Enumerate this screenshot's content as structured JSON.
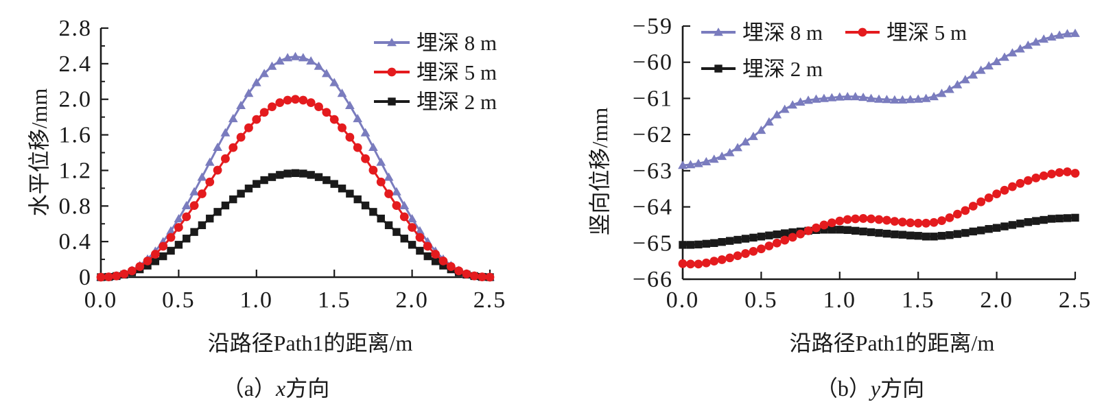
{
  "figure": {
    "background": "#ffffff",
    "text_color": "#1a1a1a"
  },
  "chart_data": [
    {
      "type": "line",
      "panel": "a",
      "caption": {
        "prefix": "（a）",
        "variable": "x",
        "suffix": "方向"
      },
      "xlabel": "沿路径Path1的距离/m",
      "ylabel": "水平位移/mm",
      "xlim": [
        0,
        2.5
      ],
      "ylim": [
        0,
        2.8
      ],
      "x_ticks": {
        "values": [
          0,
          0.5,
          1.0,
          1.5,
          2.0,
          2.5
        ],
        "labels": [
          "0.0",
          "0.5",
          "1.0",
          "1.5",
          "2.0",
          "2.5"
        ]
      },
      "y_ticks": {
        "values": [
          0,
          0.4,
          0.8,
          1.2,
          1.6,
          2.0,
          2.4,
          2.8
        ],
        "labels": [
          "0",
          "0.4",
          "0.8",
          "1.2",
          "1.6",
          "2.0",
          "2.4",
          "2.8"
        ]
      },
      "y_minor_ticks": [
        0.2,
        0.6,
        1.0,
        1.4,
        1.8,
        2.2,
        2.6
      ],
      "legend_position": "top-right-vertical",
      "grid": false,
      "x": [
        0,
        0.05,
        0.1,
        0.15,
        0.2,
        0.25,
        0.3,
        0.35,
        0.4,
        0.45,
        0.5,
        0.55,
        0.6,
        0.65,
        0.7,
        0.75,
        0.8,
        0.85,
        0.9,
        0.95,
        1,
        1.05,
        1.1,
        1.15,
        1.2,
        1.25,
        1.3,
        1.35,
        1.4,
        1.45,
        1.5,
        1.55,
        1.6,
        1.65,
        1.7,
        1.75,
        1.8,
        1.85,
        1.9,
        1.95,
        2,
        2.05,
        2.1,
        2.15,
        2.2,
        2.25,
        2.3,
        2.35,
        2.4,
        2.45,
        2.5
      ],
      "series": [
        {
          "id": "depth-8m",
          "name": "埋深 8 m",
          "marker": "triangle",
          "color": "#7a7cbe",
          "values": [
            0,
            0.002,
            0.014,
            0.038,
            0.077,
            0.132,
            0.204,
            0.293,
            0.4,
            0.521,
            0.657,
            0.805,
            0.961,
            1.125,
            1.293,
            1.46,
            1.624,
            1.783,
            1.931,
            2.068,
            2.188,
            2.29,
            2.372,
            2.431,
            2.468,
            2.48,
            2.468,
            2.431,
            2.372,
            2.29,
            2.188,
            2.068,
            1.931,
            1.783,
            1.624,
            1.46,
            1.293,
            1.125,
            0.961,
            0.805,
            0.657,
            0.521,
            0.4,
            0.293,
            0.204,
            0.132,
            0.077,
            0.038,
            0.014,
            0.002,
            0
          ]
        },
        {
          "id": "depth-5m",
          "name": "埋深 5 m",
          "marker": "circle",
          "color": "#e41b1e",
          "values": [
            0,
            0.003,
            0.014,
            0.036,
            0.071,
            0.119,
            0.182,
            0.258,
            0.347,
            0.447,
            0.559,
            0.679,
            0.805,
            0.937,
            1.07,
            1.203,
            1.332,
            1.457,
            1.573,
            1.679,
            1.773,
            1.853,
            1.916,
            1.962,
            1.99,
            2,
            1.99,
            1.962,
            1.916,
            1.853,
            1.773,
            1.679,
            1.573,
            1.457,
            1.332,
            1.203,
            1.07,
            0.937,
            0.805,
            0.679,
            0.559,
            0.447,
            0.347,
            0.258,
            0.182,
            0.119,
            0.071,
            0.036,
            0.014,
            0.003,
            0
          ]
        },
        {
          "id": "depth-2m",
          "name": "埋深 2 m",
          "marker": "square",
          "color": "#1a1a1a",
          "values": [
            0,
            0.003,
            0.012,
            0.029,
            0.055,
            0.088,
            0.13,
            0.179,
            0.235,
            0.297,
            0.364,
            0.434,
            0.508,
            0.584,
            0.659,
            0.734,
            0.806,
            0.875,
            0.939,
            0.997,
            1.048,
            1.091,
            1.125,
            1.15,
            1.165,
            1.17,
            1.165,
            1.15,
            1.125,
            1.091,
            1.048,
            0.997,
            0.939,
            0.875,
            0.806,
            0.734,
            0.659,
            0.584,
            0.508,
            0.434,
            0.364,
            0.297,
            0.235,
            0.179,
            0.13,
            0.088,
            0.055,
            0.029,
            0.012,
            0.003,
            0
          ]
        }
      ]
    },
    {
      "type": "line",
      "panel": "b",
      "caption": {
        "prefix": "（b）",
        "variable": "y",
        "suffix": "方向"
      },
      "xlabel": "沿路径Path1的距离/m",
      "ylabel": "竖向位移/mm",
      "xlim": [
        0,
        2.5
      ],
      "ylim": [
        -66,
        -59
      ],
      "x_ticks": {
        "values": [
          0,
          0.5,
          1.0,
          1.5,
          2.0,
          2.5
        ],
        "labels": [
          "0.0",
          "0.5",
          "1.0",
          "1.5",
          "2.0",
          "2.5"
        ]
      },
      "y_ticks": {
        "values": [
          -66,
          -65,
          -64,
          -63,
          -62,
          -61,
          -60,
          -59
        ],
        "labels": [
          "−66",
          "−65",
          "−64",
          "−63",
          "−62",
          "−61",
          "−60",
          "−59"
        ]
      },
      "y_minor_ticks": [],
      "legend_position": "top-left-two-column",
      "grid": false,
      "x": [
        0,
        0.05,
        0.1,
        0.15,
        0.2,
        0.25,
        0.3,
        0.35,
        0.4,
        0.45,
        0.5,
        0.55,
        0.6,
        0.65,
        0.7,
        0.75,
        0.8,
        0.85,
        0.9,
        0.95,
        1,
        1.05,
        1.1,
        1.15,
        1.2,
        1.25,
        1.3,
        1.35,
        1.4,
        1.45,
        1.5,
        1.55,
        1.6,
        1.65,
        1.7,
        1.75,
        1.8,
        1.85,
        1.9,
        1.95,
        2,
        2.05,
        2.1,
        2.15,
        2.2,
        2.25,
        2.3,
        2.35,
        2.4,
        2.45,
        2.5
      ],
      "series": [
        {
          "id": "depth-8m",
          "name": "埋深 8 m",
          "marker": "triangle",
          "color": "#7a7cbe",
          "values": [
            -62.85,
            -62.83,
            -62.8,
            -62.75,
            -62.68,
            -62.6,
            -62.5,
            -62.36,
            -62.2,
            -62.05,
            -61.88,
            -61.65,
            -61.45,
            -61.3,
            -61.18,
            -61.1,
            -61.05,
            -61.02,
            -61,
            -60.98,
            -60.96,
            -60.95,
            -60.95,
            -60.97,
            -61,
            -61.02,
            -61.03,
            -61.04,
            -61.04,
            -61.03,
            -61.02,
            -61,
            -60.95,
            -60.86,
            -60.75,
            -60.62,
            -60.48,
            -60.35,
            -60.22,
            -60.1,
            -59.98,
            -59.86,
            -59.74,
            -59.63,
            -59.53,
            -59.44,
            -59.36,
            -59.3,
            -59.25,
            -59.21,
            -59.2
          ]
        },
        {
          "id": "depth-5m",
          "name": "埋深 5 m",
          "marker": "circle",
          "color": "#e41b1e",
          "values": [
            -65.57,
            -65.58,
            -65.58,
            -65.55,
            -65.5,
            -65.46,
            -65.41,
            -65.35,
            -65.29,
            -65.23,
            -65.16,
            -65.08,
            -65,
            -64.92,
            -64.84,
            -64.75,
            -64.66,
            -64.58,
            -64.5,
            -64.44,
            -64.39,
            -64.35,
            -64.33,
            -64.32,
            -64.33,
            -64.35,
            -64.37,
            -64.4,
            -64.42,
            -64.44,
            -64.45,
            -64.45,
            -64.43,
            -64.38,
            -64.3,
            -64.2,
            -64.1,
            -63.98,
            -63.86,
            -63.75,
            -63.64,
            -63.54,
            -63.44,
            -63.35,
            -63.27,
            -63.2,
            -63.14,
            -63.09,
            -63.05,
            -63.03,
            -63.07
          ]
        },
        {
          "id": "depth-2m",
          "name": "埋深 2 m",
          "marker": "square",
          "color": "#1a1a1a",
          "values": [
            -65.05,
            -65.05,
            -65.04,
            -65.02,
            -65,
            -64.97,
            -64.94,
            -64.91,
            -64.88,
            -64.85,
            -64.82,
            -64.79,
            -64.76,
            -64.73,
            -64.7,
            -64.68,
            -64.66,
            -64.64,
            -64.63,
            -64.63,
            -64.63,
            -64.64,
            -64.66,
            -64.68,
            -64.7,
            -64.72,
            -64.74,
            -64.76,
            -64.77,
            -64.79,
            -64.8,
            -64.82,
            -64.82,
            -64.8,
            -64.78,
            -64.75,
            -64.72,
            -64.68,
            -64.65,
            -64.61,
            -64.58,
            -64.54,
            -64.5,
            -64.46,
            -64.42,
            -64.39,
            -64.36,
            -64.33,
            -64.32,
            -64.31,
            -64.3
          ]
        }
      ]
    }
  ]
}
